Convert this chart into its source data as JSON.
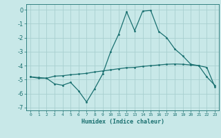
{
  "xlabel": "Humidex (Indice chaleur)",
  "ylabel": "",
  "background_color": "#c8e8e8",
  "grid_color": "#a8d0d0",
  "line_color": "#1a7070",
  "xlim": [
    -0.5,
    23.5
  ],
  "ylim": [
    -7.2,
    0.4
  ],
  "yticks": [
    0,
    -1,
    -2,
    -3,
    -4,
    -5,
    -6,
    -7
  ],
  "xticks": [
    0,
    1,
    2,
    3,
    4,
    5,
    6,
    7,
    8,
    9,
    10,
    11,
    12,
    13,
    14,
    15,
    16,
    17,
    18,
    19,
    20,
    21,
    22,
    23
  ],
  "curve1_x": [
    0,
    1,
    2,
    3,
    4,
    5,
    6,
    7,
    8,
    9,
    10,
    11,
    12,
    13,
    14,
    15,
    16,
    17,
    18,
    19,
    20,
    21,
    22,
    23
  ],
  "curve1_y": [
    -4.8,
    -4.9,
    -4.9,
    -5.3,
    -5.4,
    -5.2,
    -5.8,
    -6.6,
    -5.65,
    -4.6,
    -3.0,
    -1.75,
    -0.15,
    -1.5,
    -0.1,
    -0.05,
    -1.55,
    -2.0,
    -2.8,
    -3.3,
    -3.9,
    -4.0,
    -4.8,
    -5.4
  ],
  "curve2_x": [
    0,
    1,
    2,
    3,
    4,
    5,
    6,
    7,
    8,
    9,
    10,
    11,
    12,
    13,
    14,
    15,
    16,
    17,
    18,
    19,
    20,
    21,
    22,
    23
  ],
  "curve2_y": [
    -4.8,
    -4.85,
    -4.9,
    -4.75,
    -4.72,
    -4.65,
    -4.6,
    -4.55,
    -4.45,
    -4.38,
    -4.3,
    -4.22,
    -4.15,
    -4.12,
    -4.05,
    -4.0,
    -3.95,
    -3.9,
    -3.88,
    -3.9,
    -3.95,
    -4.0,
    -4.12,
    -5.5
  ],
  "xlabel_fontsize": 6,
  "ytick_fontsize": 6,
  "xtick_fontsize": 4.5
}
